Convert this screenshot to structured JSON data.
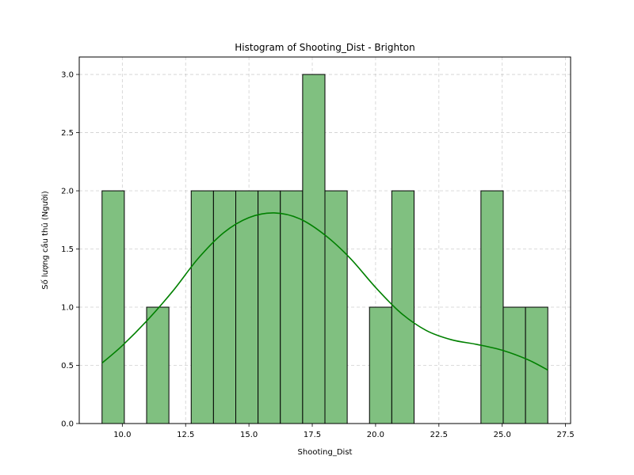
{
  "chart_data": {
    "type": "bar",
    "title": "Histogram of Shooting_Dist - Brighton",
    "xlabel": "Shooting_Dist",
    "ylabel": "Số lượng cầu thủ (Người)",
    "xlim": [
      8.3,
      27.7
    ],
    "ylim": [
      0,
      3.15
    ],
    "xticks": [
      10.0,
      12.5,
      15.0,
      17.5,
      20.0,
      22.5,
      25.0,
      27.5
    ],
    "xtick_labels": [
      "10.0",
      "12.5",
      "15.0",
      "17.5",
      "20.0",
      "22.5",
      "25.0",
      "27.5"
    ],
    "yticks": [
      0.0,
      0.5,
      1.0,
      1.5,
      2.0,
      2.5,
      3.0
    ],
    "ytick_labels": [
      "0.0",
      "0.5",
      "1.0",
      "1.5",
      "2.0",
      "2.5",
      "3.0"
    ],
    "grid": true,
    "bar_color": "#80c080",
    "edge_color": "#000000",
    "kde_color": "#008000",
    "bins": [
      {
        "left": 9.2,
        "right": 10.08,
        "count": 2
      },
      {
        "left": 10.08,
        "right": 10.96,
        "count": 0
      },
      {
        "left": 10.96,
        "right": 11.84,
        "count": 1
      },
      {
        "left": 11.84,
        "right": 12.72,
        "count": 0
      },
      {
        "left": 12.72,
        "right": 13.6,
        "count": 2
      },
      {
        "left": 13.6,
        "right": 14.48,
        "count": 2
      },
      {
        "left": 14.48,
        "right": 15.36,
        "count": 2
      },
      {
        "left": 15.36,
        "right": 16.24,
        "count": 2
      },
      {
        "left": 16.24,
        "right": 17.12,
        "count": 2
      },
      {
        "left": 17.12,
        "right": 18.0,
        "count": 3
      },
      {
        "left": 18.0,
        "right": 18.88,
        "count": 2
      },
      {
        "left": 18.88,
        "right": 19.76,
        "count": 0
      },
      {
        "left": 19.76,
        "right": 20.64,
        "count": 1
      },
      {
        "left": 20.64,
        "right": 21.52,
        "count": 2
      },
      {
        "left": 21.52,
        "right": 22.4,
        "count": 0
      },
      {
        "left": 22.4,
        "right": 23.28,
        "count": 0
      },
      {
        "left": 23.28,
        "right": 24.16,
        "count": 0
      },
      {
        "left": 24.16,
        "right": 25.04,
        "count": 2
      },
      {
        "left": 25.04,
        "right": 25.92,
        "count": 1
      },
      {
        "left": 25.92,
        "right": 26.8,
        "count": 1
      }
    ],
    "kde": {
      "x": [
        9.2,
        10.0,
        11.0,
        12.0,
        13.0,
        14.0,
        15.0,
        16.0,
        17.0,
        18.0,
        19.0,
        20.0,
        21.0,
        22.0,
        23.0,
        24.0,
        25.0,
        26.0,
        26.8
      ],
      "y": [
        0.52,
        0.67,
        0.89,
        1.14,
        1.42,
        1.64,
        1.77,
        1.81,
        1.76,
        1.62,
        1.42,
        1.17,
        0.95,
        0.8,
        0.72,
        0.68,
        0.63,
        0.55,
        0.46
      ]
    }
  }
}
